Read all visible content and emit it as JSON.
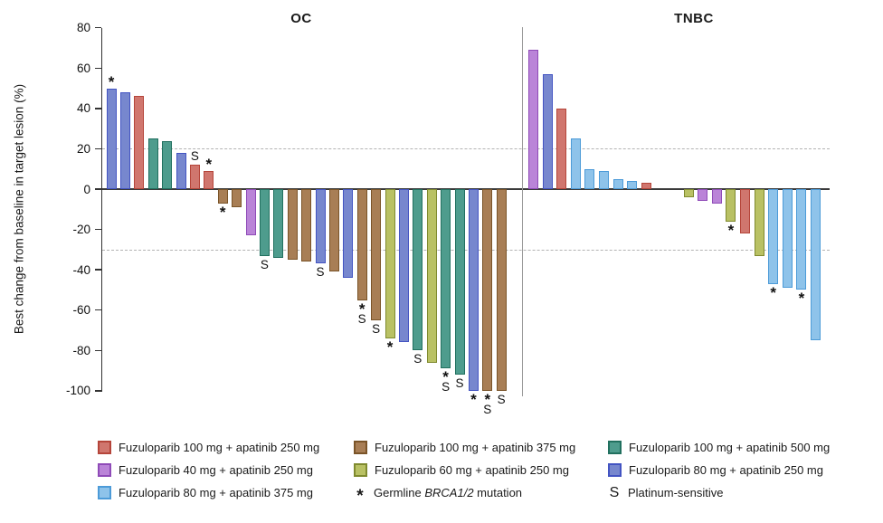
{
  "chart_data": {
    "type": "bar",
    "subtype": "waterfall",
    "ylabel": "Best change from baseline in target lesion (%)",
    "ylim": [
      -100,
      80
    ],
    "yticks": [
      80,
      60,
      40,
      20,
      0,
      -20,
      -40,
      -60,
      -80,
      -100
    ],
    "reference_lines": [
      20,
      -30
    ],
    "legend_position": "bottom",
    "groups": {
      "f100a250": {
        "label": "Fuzuloparib 100 mg + apatinib 250 mg",
        "fill": "#D0766E",
        "border": "#B5453A"
      },
      "f100a375": {
        "label": "Fuzuloparib 100 mg + apatinib 375 mg",
        "fill": "#A87E55",
        "border": "#7A5428"
      },
      "f100a500": {
        "label": "Fuzuloparib 100 mg + apatinib 500 mg",
        "fill": "#4E9C8D",
        "border": "#21705F"
      },
      "f40a250": {
        "label": "Fuzuloparib 40 mg + apatinib 250 mg",
        "fill": "#BA84D8",
        "border": "#8F4BB8"
      },
      "f60a250": {
        "label": "Fuzuloparib 60 mg + apatinib 250 mg",
        "fill": "#B9C164",
        "border": "#7F8A2F"
      },
      "f80a250": {
        "label": "Fuzuloparib 80 mg + apatinib 250 mg",
        "fill": "#7787CE",
        "border": "#4354C2"
      },
      "f80a375": {
        "label": "Fuzuloparib 80 mg + apatinib 375 mg",
        "fill": "#8EC3EA",
        "border": "#4C9BD8"
      }
    },
    "annotations": {
      "star": {
        "symbol": "*",
        "label_prefix": "Germline ",
        "label_italic": "BRCA1/2",
        "label_suffix": " mutation"
      },
      "sensitive": {
        "symbol": "S",
        "label": "Platinum-sensitive"
      }
    },
    "panels": [
      {
        "title": "OC",
        "bars": [
          {
            "group": "f80a250",
            "value": 50,
            "marks": "*"
          },
          {
            "group": "f80a250",
            "value": 48,
            "marks": ""
          },
          {
            "group": "f100a250",
            "value": 46,
            "marks": ""
          },
          {
            "group": "f100a500",
            "value": 25,
            "marks": ""
          },
          {
            "group": "f100a500",
            "value": 24,
            "marks": ""
          },
          {
            "group": "f80a250",
            "value": 18,
            "marks": ""
          },
          {
            "group": "f100a250",
            "value": 12,
            "marks": "S"
          },
          {
            "group": "f100a250",
            "value": 9,
            "marks": "*"
          },
          {
            "group": "f100a375",
            "value": -7,
            "marks": "*"
          },
          {
            "group": "f100a375",
            "value": -9,
            "marks": ""
          },
          {
            "group": "f40a250",
            "value": -23,
            "marks": ""
          },
          {
            "group": "f100a500",
            "value": -33,
            "marks": "S"
          },
          {
            "group": "f100a500",
            "value": -34,
            "marks": ""
          },
          {
            "group": "f100a375",
            "value": -35,
            "marks": ""
          },
          {
            "group": "f100a375",
            "value": -36,
            "marks": ""
          },
          {
            "group": "f80a250",
            "value": -37,
            "marks": "S"
          },
          {
            "group": "f100a375",
            "value": -41,
            "marks": ""
          },
          {
            "group": "f80a250",
            "value": -44,
            "marks": ""
          },
          {
            "group": "f100a375",
            "value": -55,
            "marks": "*S"
          },
          {
            "group": "f100a375",
            "value": -65,
            "marks": "S"
          },
          {
            "group": "f60a250",
            "value": -74,
            "marks": "*"
          },
          {
            "group": "f80a250",
            "value": -76,
            "marks": ""
          },
          {
            "group": "f100a500",
            "value": -80,
            "marks": "S"
          },
          {
            "group": "f60a250",
            "value": -86,
            "marks": ""
          },
          {
            "group": "f100a500",
            "value": -89,
            "marks": "*S"
          },
          {
            "group": "f100a500",
            "value": -92,
            "marks": "S"
          },
          {
            "group": "f80a250",
            "value": -100,
            "marks": "*"
          },
          {
            "group": "f100a375",
            "value": -100,
            "marks": "*S"
          },
          {
            "group": "f100a375",
            "value": -100,
            "marks": "S"
          }
        ]
      },
      {
        "title": "TNBC",
        "bars": [
          {
            "group": "f40a250",
            "value": 69,
            "marks": ""
          },
          {
            "group": "f80a250",
            "value": 57,
            "marks": ""
          },
          {
            "group": "f100a250",
            "value": 40,
            "marks": ""
          },
          {
            "group": "f80a375",
            "value": 25,
            "marks": ""
          },
          {
            "group": "f80a375",
            "value": 10,
            "marks": ""
          },
          {
            "group": "f80a375",
            "value": 9,
            "marks": ""
          },
          {
            "group": "f80a375",
            "value": 5,
            "marks": ""
          },
          {
            "group": "f80a375",
            "value": 4,
            "marks": ""
          },
          {
            "group": "f100a250",
            "value": 3,
            "marks": ""
          },
          {
            "group": null,
            "value": 0,
            "marks": ""
          },
          {
            "group": null,
            "value": 0,
            "marks": ""
          },
          {
            "group": "f60a250",
            "value": -4,
            "marks": ""
          },
          {
            "group": "f40a250",
            "value": -6,
            "marks": ""
          },
          {
            "group": "f40a250",
            "value": -7,
            "marks": ""
          },
          {
            "group": "f60a250",
            "value": -16,
            "marks": "*"
          },
          {
            "group": "f100a250",
            "value": -22,
            "marks": ""
          },
          {
            "group": "f60a250",
            "value": -33,
            "marks": ""
          },
          {
            "group": "f80a375",
            "value": -47,
            "marks": "*"
          },
          {
            "group": "f80a375",
            "value": -49,
            "marks": ""
          },
          {
            "group": "f80a375",
            "value": -50,
            "marks": "*"
          },
          {
            "group": "f80a375",
            "value": -75,
            "marks": ""
          }
        ]
      }
    ]
  },
  "legend": {
    "order": [
      "f100a250",
      "f100a375",
      "f100a500",
      "f40a250",
      "f60a250",
      "f80a250",
      "f80a375"
    ]
  }
}
